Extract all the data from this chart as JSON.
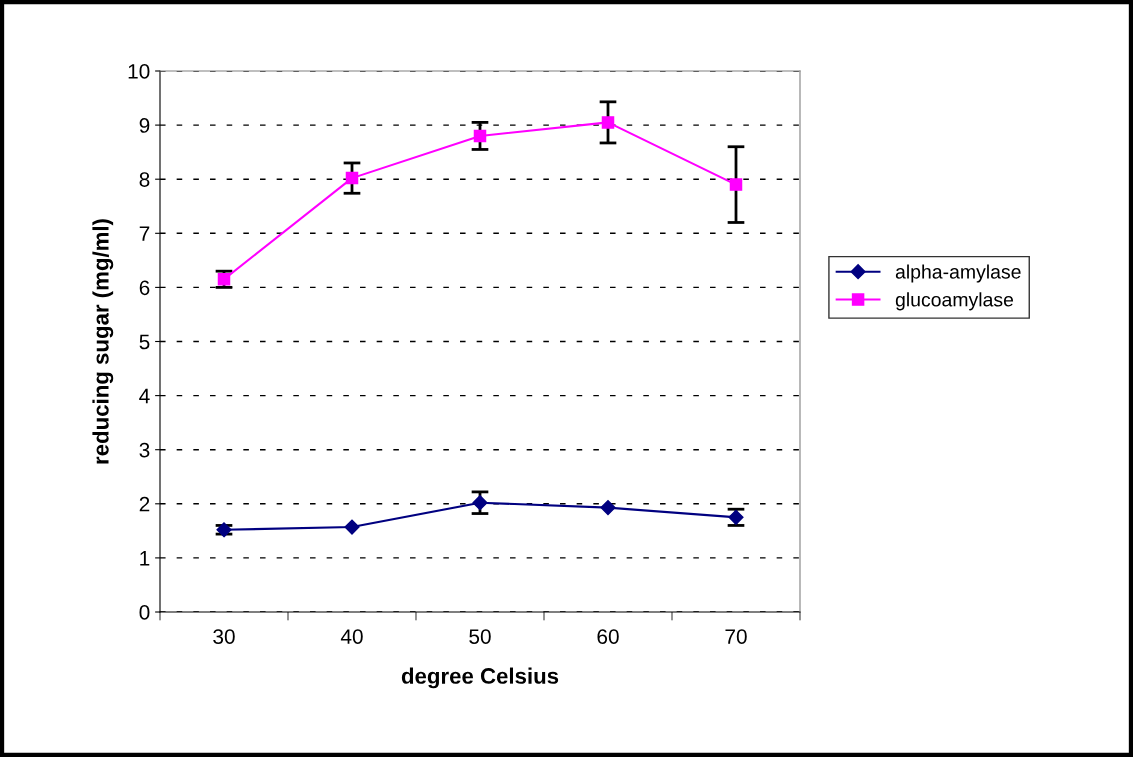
{
  "chart_data": {
    "type": "line",
    "xlabel": "degree Celsius",
    "ylabel": "reducing sugar (mg/ml)",
    "categories": [
      "30",
      "40",
      "50",
      "60",
      "70"
    ],
    "series": [
      {
        "name": "alpha-amylase",
        "color": "#000080",
        "marker": "diamond",
        "values": [
          1.52,
          1.57,
          2.02,
          1.93,
          1.75
        ],
        "errors": [
          0.08,
          null,
          0.2,
          null,
          0.15
        ]
      },
      {
        "name": "glucoamylase",
        "color": "#ff00ff",
        "marker": "square",
        "values": [
          6.15,
          8.02,
          8.8,
          9.05,
          7.9
        ],
        "errors": [
          0.15,
          0.28,
          0.25,
          0.38,
          0.7
        ]
      }
    ],
    "ylim": [
      0,
      10
    ],
    "yticks": [
      0,
      1,
      2,
      3,
      4,
      5,
      6,
      7,
      8,
      9,
      10
    ],
    "grid": "y",
    "legend": "right",
    "line_style": "solid"
  }
}
